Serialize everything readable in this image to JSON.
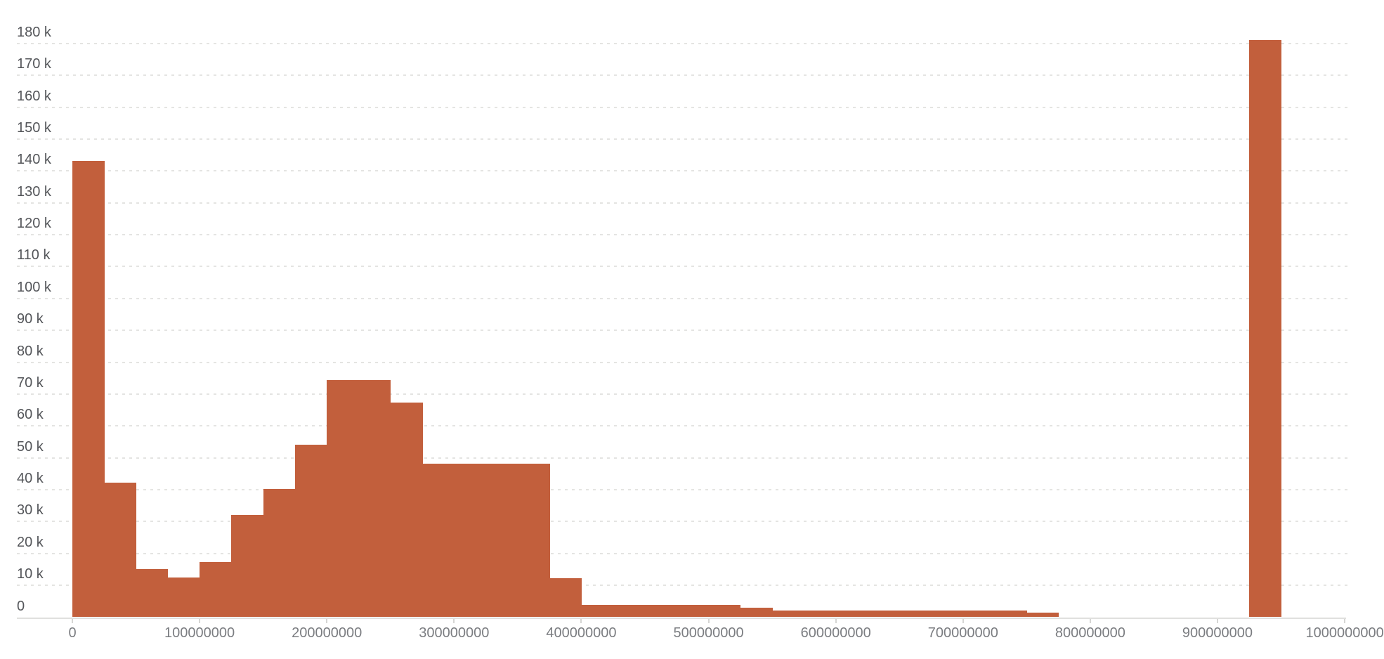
{
  "colors": {
    "bar": "#C25F3C",
    "gridline": "#e4e4e2",
    "axis_line": "#e0e0de",
    "tick": "#d6d6d4",
    "y_label": "#54565a",
    "x_label": "#7b7d81",
    "background": "#ffffff"
  },
  "chart_data": {
    "type": "bar",
    "subtype": "histogram",
    "title": "",
    "xlabel": "",
    "ylabel": "",
    "grid": "horizontal-dashed",
    "legend": "none",
    "bin_width": 25000000,
    "x_axis": {
      "range": [
        0,
        1000000000
      ],
      "tick_values": [
        0,
        100000000,
        200000000,
        300000000,
        400000000,
        500000000,
        600000000,
        700000000,
        800000000,
        900000000,
        1000000000
      ],
      "tick_labels": [
        "0",
        "100000000",
        "200000000",
        "300000000",
        "400000000",
        "500000000",
        "600000000",
        "700000000",
        "800000000",
        "900000000",
        "1000000000"
      ]
    },
    "y_axis": {
      "range": [
        0,
        193000
      ],
      "tick_values": [
        0,
        10000,
        20000,
        30000,
        40000,
        50000,
        60000,
        70000,
        80000,
        90000,
        100000,
        110000,
        120000,
        130000,
        140000,
        150000,
        160000,
        170000,
        180000
      ],
      "tick_labels": [
        "0",
        "10 k",
        "20 k",
        "30 k",
        "40 k",
        "50 k",
        "60 k",
        "70 k",
        "80 k",
        "90 k",
        "100 k",
        "110 k",
        "120 k",
        "130 k",
        "140 k",
        "150 k",
        "160 k",
        "170 k",
        "180 k"
      ]
    },
    "bins": [
      {
        "start": 0,
        "count": 143200
      },
      {
        "start": 25000000,
        "count": 42300
      },
      {
        "start": 50000000,
        "count": 15100
      },
      {
        "start": 75000000,
        "count": 12400
      },
      {
        "start": 100000000,
        "count": 17400
      },
      {
        "start": 125000000,
        "count": 32000
      },
      {
        "start": 150000000,
        "count": 40300
      },
      {
        "start": 175000000,
        "count": 54200
      },
      {
        "start": 200000000,
        "count": 74300
      },
      {
        "start": 225000000,
        "count": 74300
      },
      {
        "start": 250000000,
        "count": 67300
      },
      {
        "start": 275000000,
        "count": 48200
      },
      {
        "start": 300000000,
        "count": 48200
      },
      {
        "start": 325000000,
        "count": 48200
      },
      {
        "start": 350000000,
        "count": 48200
      },
      {
        "start": 375000000,
        "count": 12300
      },
      {
        "start": 400000000,
        "count": 3800
      },
      {
        "start": 425000000,
        "count": 3800
      },
      {
        "start": 450000000,
        "count": 3800
      },
      {
        "start": 475000000,
        "count": 3800
      },
      {
        "start": 500000000,
        "count": 3800
      },
      {
        "start": 525000000,
        "count": 3000
      },
      {
        "start": 550000000,
        "count": 2200
      },
      {
        "start": 575000000,
        "count": 2200
      },
      {
        "start": 600000000,
        "count": 2200
      },
      {
        "start": 625000000,
        "count": 2200
      },
      {
        "start": 650000000,
        "count": 2200
      },
      {
        "start": 675000000,
        "count": 2200
      },
      {
        "start": 700000000,
        "count": 2200
      },
      {
        "start": 725000000,
        "count": 2200
      },
      {
        "start": 750000000,
        "count": 1500
      },
      {
        "start": 775000000,
        "count": 0
      },
      {
        "start": 800000000,
        "count": 0
      },
      {
        "start": 825000000,
        "count": 0
      },
      {
        "start": 850000000,
        "count": 0
      },
      {
        "start": 875000000,
        "count": 0
      },
      {
        "start": 900000000,
        "count": 0
      },
      {
        "start": 925000000,
        "count": 181100
      },
      {
        "start": 950000000,
        "count": 0
      },
      {
        "start": 975000000,
        "count": 0
      }
    ]
  }
}
